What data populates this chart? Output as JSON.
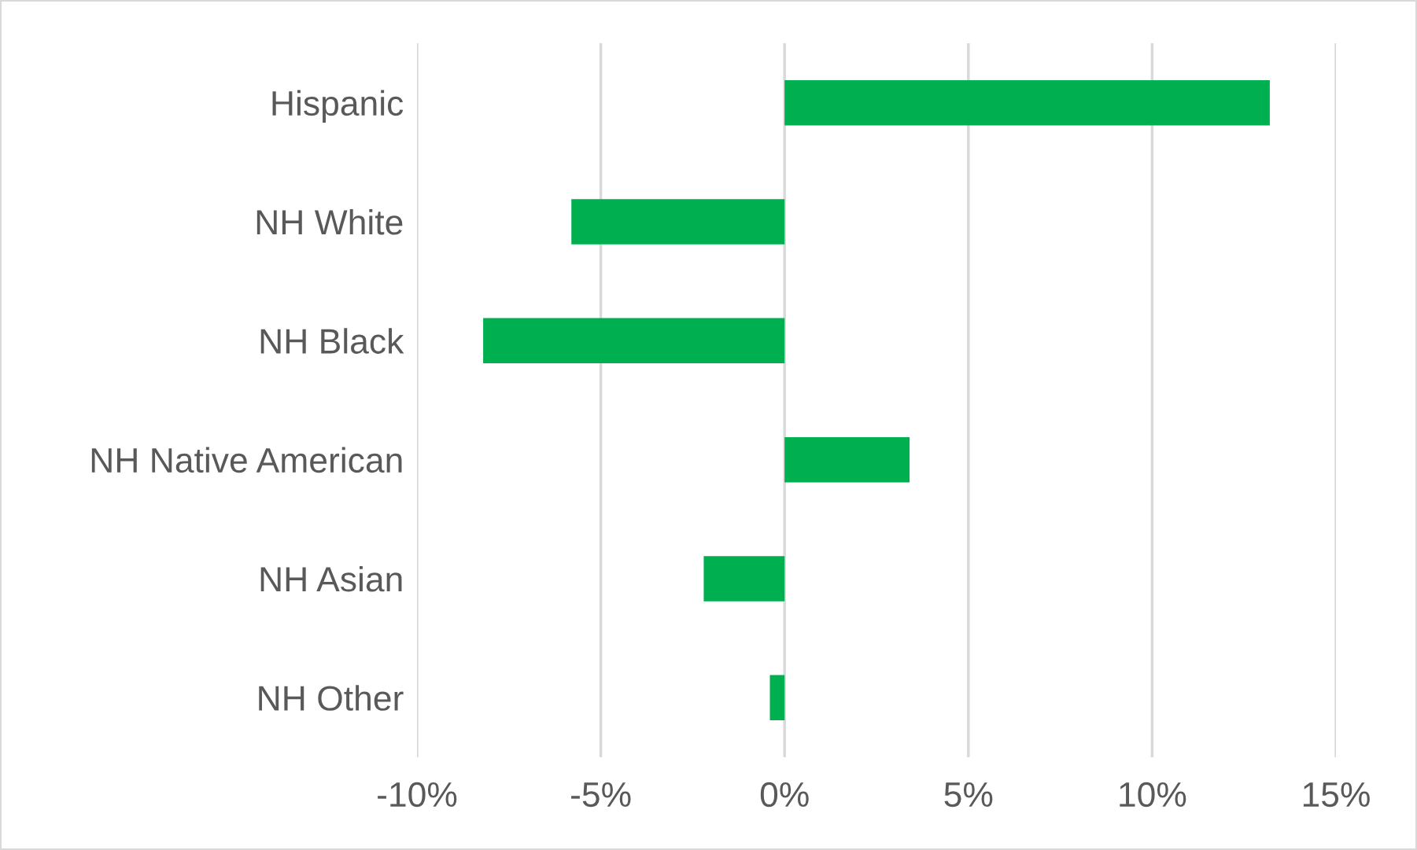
{
  "chart_data": {
    "type": "bar",
    "orientation": "horizontal",
    "categories": [
      "Hispanic",
      "NH White",
      "NH Black",
      "NH Native American",
      "NH Asian",
      "NH Other"
    ],
    "values": [
      13.2,
      -5.8,
      -8.2,
      3.4,
      -2.2,
      -0.4
    ],
    "color": "#00b050",
    "xlim": [
      -10,
      15
    ],
    "xticks": [
      {
        "value": -10,
        "label": "-10%"
      },
      {
        "value": -5,
        "label": "-5%"
      },
      {
        "value": 0,
        "label": "0%"
      },
      {
        "value": 5,
        "label": "5%"
      },
      {
        "value": 10,
        "label": "10%"
      },
      {
        "value": 15,
        "label": "15%"
      }
    ],
    "grid": "x"
  }
}
